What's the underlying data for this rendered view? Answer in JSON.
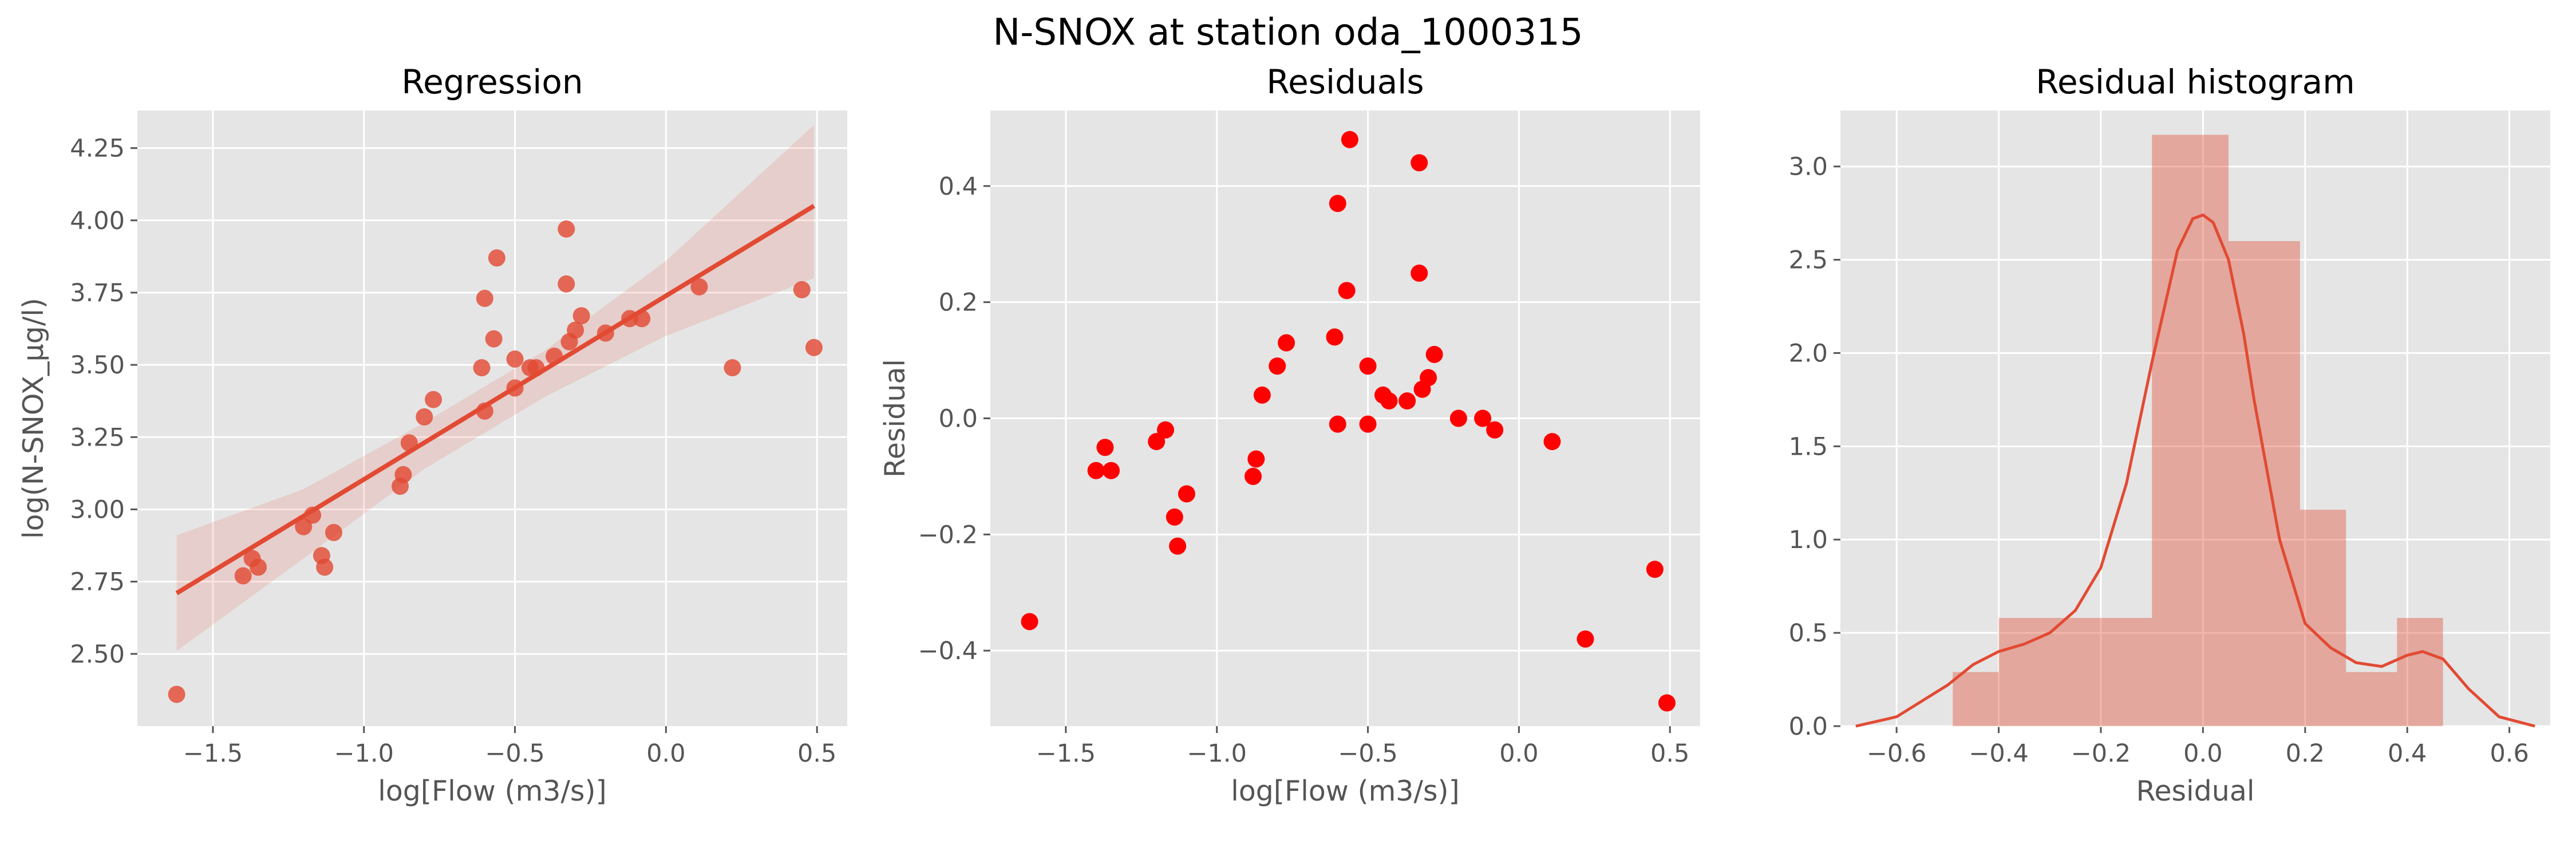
{
  "figure": {
    "title": "N-SNOX at station oda_1000315"
  },
  "colors": {
    "panel_bg": "#E5E5E5",
    "grid": "#FFFFFF",
    "regression": "#E24A33",
    "residual_points": "#FF0000",
    "histogram": "#E24A33"
  },
  "chart_data": [
    {
      "type": "scatter",
      "title": "Regression",
      "xlabel": "log[Flow (m3/s)]",
      "ylabel": "log(N-SNOX_µg/l)",
      "xlim": [
        -1.75,
        0.6
      ],
      "ylim": [
        2.25,
        4.38
      ],
      "xticks": [
        -1.5,
        -1.0,
        -0.5,
        0.0,
        0.5
      ],
      "xtick_labels": [
        "−1.5",
        "−1.0",
        "−0.5",
        "0.0",
        "0.5"
      ],
      "yticks": [
        2.5,
        2.75,
        3.0,
        3.25,
        3.5,
        3.75,
        4.0,
        4.25
      ],
      "ytick_labels": [
        "2.50",
        "2.75",
        "3.00",
        "3.25",
        "3.50",
        "3.75",
        "4.00",
        "4.25"
      ],
      "grid": true,
      "points": {
        "x": [
          -1.62,
          -1.4,
          -1.37,
          -1.35,
          -1.2,
          -1.17,
          -1.14,
          -1.13,
          -1.1,
          -0.88,
          -0.87,
          -0.85,
          -0.8,
          -0.77,
          -0.61,
          -0.6,
          -0.6,
          -0.57,
          -0.56,
          -0.5,
          -0.5,
          -0.45,
          -0.43,
          -0.37,
          -0.33,
          -0.33,
          -0.32,
          -0.3,
          -0.28,
          -0.2,
          -0.12,
          -0.08,
          0.11,
          0.22,
          0.45,
          0.49
        ],
        "y": [
          2.36,
          2.77,
          2.83,
          2.8,
          2.94,
          2.98,
          2.84,
          2.8,
          2.92,
          3.08,
          3.12,
          3.23,
          3.32,
          3.38,
          3.49,
          3.73,
          3.34,
          3.59,
          3.87,
          3.52,
          3.42,
          3.49,
          3.49,
          3.53,
          3.78,
          3.97,
          3.58,
          3.62,
          3.67,
          3.61,
          3.66,
          3.66,
          3.77,
          3.49,
          3.76,
          3.56
        ]
      },
      "fit_line": {
        "x": [
          -1.62,
          0.49
        ],
        "y": [
          2.71,
          4.05
        ]
      },
      "confidence_band": {
        "x": [
          -1.62,
          -1.2,
          -0.8,
          -0.4,
          0.0,
          0.49
        ],
        "upper": [
          2.91,
          3.07,
          3.3,
          3.55,
          3.86,
          4.33
        ],
        "lower": [
          2.51,
          2.83,
          3.14,
          3.39,
          3.6,
          3.8
        ]
      }
    },
    {
      "type": "scatter",
      "title": "Residuals",
      "xlabel": "log[Flow (m3/s)]",
      "ylabel": "Residual",
      "xlim": [
        -1.75,
        0.6
      ],
      "ylim": [
        -0.53,
        0.53
      ],
      "xticks": [
        -1.5,
        -1.0,
        -0.5,
        0.0,
        0.5
      ],
      "xtick_labels": [
        "−1.5",
        "−1.0",
        "−0.5",
        "0.0",
        "0.5"
      ],
      "yticks": [
        -0.4,
        -0.2,
        0.0,
        0.2,
        0.4
      ],
      "ytick_labels": [
        "−0.4",
        "−0.2",
        "0.0",
        "0.2",
        "0.4"
      ],
      "grid": true,
      "points": {
        "x": [
          -1.62,
          -1.4,
          -1.37,
          -1.35,
          -1.2,
          -1.17,
          -1.14,
          -1.13,
          -1.1,
          -0.88,
          -0.87,
          -0.85,
          -0.8,
          -0.77,
          -0.61,
          -0.6,
          -0.6,
          -0.57,
          -0.56,
          -0.5,
          -0.5,
          -0.45,
          -0.43,
          -0.37,
          -0.33,
          -0.33,
          -0.32,
          -0.3,
          -0.28,
          -0.2,
          -0.12,
          -0.08,
          0.11,
          0.22,
          0.45,
          0.49
        ],
        "y": [
          -0.35,
          -0.09,
          -0.05,
          -0.09,
          -0.04,
          -0.02,
          -0.17,
          -0.22,
          -0.13,
          -0.1,
          -0.07,
          0.04,
          0.09,
          0.13,
          0.14,
          0.37,
          -0.01,
          0.22,
          0.48,
          0.09,
          -0.01,
          0.04,
          0.03,
          0.03,
          0.25,
          0.44,
          0.05,
          0.07,
          0.11,
          0.0,
          0.0,
          -0.02,
          -0.04,
          -0.38,
          -0.26,
          -0.49
        ]
      }
    },
    {
      "type": "bar",
      "title": "Residual histogram",
      "xlabel": "Residual",
      "ylabel": "",
      "xlim": [
        -0.71,
        0.68
      ],
      "ylim": [
        0,
        3.3
      ],
      "xticks": [
        -0.6,
        -0.4,
        -0.2,
        0.0,
        0.2,
        0.4,
        0.6
      ],
      "xtick_labels": [
        "−0.6",
        "−0.4",
        "−0.2",
        "0.0",
        "0.2",
        "0.4",
        "0.6"
      ],
      "yticks": [
        0.0,
        0.5,
        1.0,
        1.5,
        2.0,
        2.5,
        3.0
      ],
      "ytick_labels": [
        "0.0",
        "0.5",
        "1.0",
        "1.5",
        "2.0",
        "2.5",
        "3.0"
      ],
      "grid": true,
      "bins": {
        "edges": [
          -0.49,
          -0.4,
          -0.28,
          -0.1,
          0.05,
          0.19,
          0.28,
          0.38,
          0.47
        ],
        "density": [
          0.29,
          0.58,
          0.58,
          3.17,
          2.6,
          1.16,
          0.29,
          0.58
        ]
      },
      "kde": {
        "x": [
          -0.68,
          -0.6,
          -0.5,
          -0.45,
          -0.4,
          -0.35,
          -0.3,
          -0.25,
          -0.2,
          -0.15,
          -0.1,
          -0.05,
          -0.02,
          0.0,
          0.02,
          0.05,
          0.08,
          0.1,
          0.15,
          0.2,
          0.25,
          0.3,
          0.35,
          0.4,
          0.43,
          0.47,
          0.52,
          0.58,
          0.65
        ],
        "density": [
          0.0,
          0.05,
          0.22,
          0.33,
          0.4,
          0.44,
          0.5,
          0.62,
          0.85,
          1.3,
          1.95,
          2.55,
          2.72,
          2.74,
          2.7,
          2.5,
          2.1,
          1.75,
          1.0,
          0.55,
          0.42,
          0.34,
          0.32,
          0.38,
          0.4,
          0.36,
          0.2,
          0.05,
          0.0
        ]
      }
    }
  ]
}
